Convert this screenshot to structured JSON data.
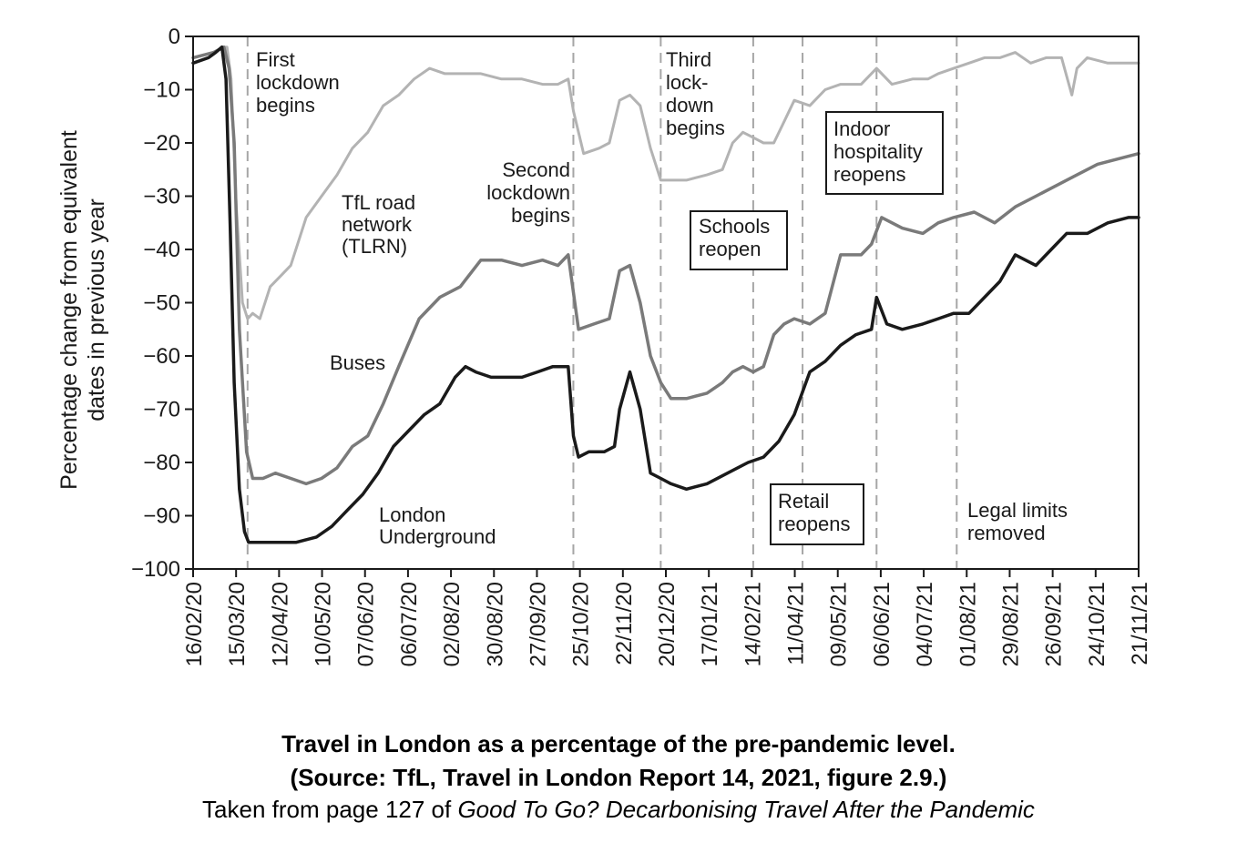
{
  "chart_data": {
    "type": "line",
    "title": "",
    "xlabel": "",
    "ylabel": "Percentage change from equivalent dates in previous year",
    "ylabel_lines": [
      "Percentage change from equivalent",
      "dates in previous year"
    ],
    "ylim": [
      -100,
      0
    ],
    "y_ticks": [
      0,
      -10,
      -20,
      -30,
      -40,
      -50,
      -60,
      -70,
      -80,
      -90,
      -100
    ],
    "y_tick_labels": [
      "0",
      "−10",
      "−20",
      "−30",
      "−40",
      "−50",
      "−60",
      "−70",
      "−80",
      "−90",
      "−100"
    ],
    "x_tick_labels": [
      "16/02/20",
      "15/03/20",
      "12/04/20",
      "10/05/20",
      "07/06/20",
      "06/07/20",
      "02/08/20",
      "30/08/20",
      "27/09/20",
      "25/10/20",
      "22/11/20",
      "20/12/20",
      "17/01/21",
      "14/02/21",
      "11/04/21",
      "09/05/21",
      "06/06/21",
      "04/07/21",
      "01/08/21",
      "29/08/21",
      "26/09/21",
      "24/10/21",
      "21/11/21"
    ],
    "x_range_weeks": [
      0,
      92
    ],
    "series": [
      {
        "name": "TfL road network (TLRN)",
        "label_lines": [
          "TfL road",
          "network",
          "(TLRN)"
        ],
        "color": "#b3b3b3",
        "x": [
          0,
          2,
          3,
          3.3,
          3.7,
          4.2,
          4.8,
          5.3,
          5.8,
          6.5,
          7.5,
          8.5,
          9.5,
          11,
          12.5,
          14,
          15.5,
          17,
          18.5,
          20,
          21.5,
          23,
          24.5,
          26,
          28,
          30,
          32,
          34,
          35.5,
          36.5,
          37,
          38,
          39.5,
          40.5,
          41.5,
          42.5,
          43.5,
          44.5,
          45.5,
          46.5,
          48,
          50,
          51.5,
          52.5,
          53.5,
          54.5,
          55.5,
          56.5,
          57.5,
          58.5,
          60,
          61.5,
          63,
          65,
          66.5,
          68,
          70,
          71.5,
          72.5,
          74,
          75.5,
          77,
          78.5,
          80,
          81.5,
          83,
          84.5,
          85.5,
          86,
          87,
          89,
          91,
          92
        ],
        "values": [
          -4,
          -3,
          -2,
          -2,
          -8,
          -32,
          -50,
          -53,
          -52,
          -53,
          -47,
          -45,
          -43,
          -34,
          -30,
          -26,
          -21,
          -18,
          -13,
          -11,
          -8,
          -6,
          -7,
          -7,
          -7,
          -8,
          -8,
          -9,
          -9,
          -8,
          -14,
          -22,
          -21,
          -20,
          -12,
          -11,
          -13,
          -21,
          -27,
          -27,
          -27,
          -26,
          -25,
          -20,
          -18,
          -19,
          -20,
          -20,
          -16,
          -12,
          -13,
          -10,
          -9,
          -9,
          -6,
          -9,
          -8,
          -8,
          -7,
          -6,
          -5,
          -4,
          -4,
          -3,
          -5,
          -4,
          -4,
          -11,
          -6,
          -4,
          -5,
          -5,
          -5
        ]
      },
      {
        "name": "Buses",
        "label_lines": [
          "Buses"
        ],
        "color": "#7a7a7a",
        "x": [
          0,
          2,
          3,
          3.5,
          4,
          4.5,
          5.2,
          5.8,
          6.8,
          8,
          9.5,
          11,
          12.5,
          14,
          15.5,
          17,
          18.5,
          20,
          22,
          24,
          26,
          28,
          30,
          32,
          34,
          35.5,
          36.5,
          37.5,
          39,
          40.5,
          41.5,
          42.5,
          43.5,
          44.5,
          45.5,
          46.5,
          48,
          50,
          51.5,
          52.5,
          53.5,
          54.5,
          55.5,
          56.5,
          57.5,
          58.5,
          60,
          61.5,
          63,
          65,
          66,
          67,
          69,
          71,
          72.5,
          74,
          76,
          78,
          80,
          82,
          84,
          86,
          88,
          90,
          92
        ],
        "values": [
          -4,
          -3,
          -2,
          -6,
          -20,
          -55,
          -78,
          -83,
          -83,
          -82,
          -83,
          -84,
          -83,
          -81,
          -77,
          -75,
          -69,
          -62,
          -53,
          -49,
          -47,
          -42,
          -42,
          -43,
          -42,
          -43,
          -41,
          -55,
          -54,
          -53,
          -44,
          -43,
          -50,
          -60,
          -65,
          -68,
          -68,
          -67,
          -65,
          -63,
          -62,
          -63,
          -62,
          -56,
          -54,
          -53,
          -54,
          -52,
          -41,
          -41,
          -39,
          -34,
          -36,
          -37,
          -35,
          -34,
          -33,
          -35,
          -32,
          -30,
          -28,
          -26,
          -24,
          -23,
          -22
        ]
      },
      {
        "name": "London Underground",
        "label_lines": [
          "London",
          "Underground"
        ],
        "color": "#1a1a1a",
        "x": [
          0,
          1.5,
          2.2,
          2.8,
          3.2,
          3.6,
          4,
          4.5,
          5,
          5.4,
          5.8,
          6.5,
          8,
          10,
          12,
          13.5,
          15,
          16.5,
          18,
          19.5,
          21,
          22.5,
          24,
          25.5,
          26.5,
          27.5,
          29,
          30.5,
          32,
          33.5,
          35,
          36.5,
          37,
          37.5,
          38.5,
          40,
          41,
          41.5,
          42.5,
          43.5,
          44.5,
          45.5,
          46.5,
          48,
          50,
          52,
          54,
          55.5,
          57,
          58.5,
          60,
          61.5,
          63,
          64.5,
          66,
          66.5,
          67.5,
          69,
          71,
          72.5,
          74,
          75.5,
          77,
          78.5,
          80,
          82,
          83.5,
          85,
          87,
          89,
          91,
          92
        ],
        "values": [
          -5,
          -4,
          -3,
          -2,
          -8,
          -35,
          -65,
          -85,
          -93,
          -95,
          -95,
          -95,
          -95,
          -95,
          -94,
          -92,
          -89,
          -86,
          -82,
          -77,
          -74,
          -71,
          -69,
          -64,
          -62,
          -63,
          -64,
          -64,
          -64,
          -63,
          -62,
          -62,
          -75,
          -79,
          -78,
          -78,
          -77,
          -70,
          -63,
          -70,
          -82,
          -83,
          -84,
          -85,
          -84,
          -82,
          -80,
          -79,
          -76,
          -71,
          -63,
          -61,
          -58,
          -56,
          -55,
          -49,
          -54,
          -55,
          -54,
          -53,
          -52,
          -52,
          -49,
          -46,
          -41,
          -43,
          -40,
          -37,
          -37,
          -35,
          -34,
          -34
        ]
      }
    ],
    "annotations": [
      {
        "name": "first-lockdown",
        "label_lines": [
          "First",
          "lockdown",
          "begins"
        ],
        "boxed": false,
        "x_week": 5.3
      },
      {
        "name": "second-lockdown",
        "label_lines": [
          "Second",
          "lockdown",
          "begins"
        ],
        "boxed": false,
        "x_week": 37
      },
      {
        "name": "third-lockdown",
        "label_lines": [
          "Third",
          "lock-",
          "down",
          "begins"
        ],
        "boxed": false,
        "x_week": 45.5
      },
      {
        "name": "schools-reopen",
        "label_lines": [
          "Schools",
          "reopen"
        ],
        "boxed": true,
        "x_week": 54.5
      },
      {
        "name": "retail-reopens",
        "label_lines": [
          "Retail",
          "reopens"
        ],
        "boxed": true,
        "x_week": 59.3
      },
      {
        "name": "indoor-hospitality-reopens",
        "label_lines": [
          "Indoor",
          "hospitality",
          "reopens"
        ],
        "boxed": true,
        "x_week": 66.5
      },
      {
        "name": "legal-limits-removed",
        "label_lines": [
          "Legal limits",
          "removed"
        ],
        "boxed": false,
        "x_week": 74.3
      }
    ]
  },
  "caption": {
    "line1": "Travel in London as a percentage of the pre-pandemic level.",
    "line2": "(Source: TfL, Travel in London Report 14, 2021, figure 2.9.)",
    "line3_prefix": "Taken from page 127 of ",
    "line3_title": "Good To Go? Decarbonising Travel After the Pandemic"
  }
}
